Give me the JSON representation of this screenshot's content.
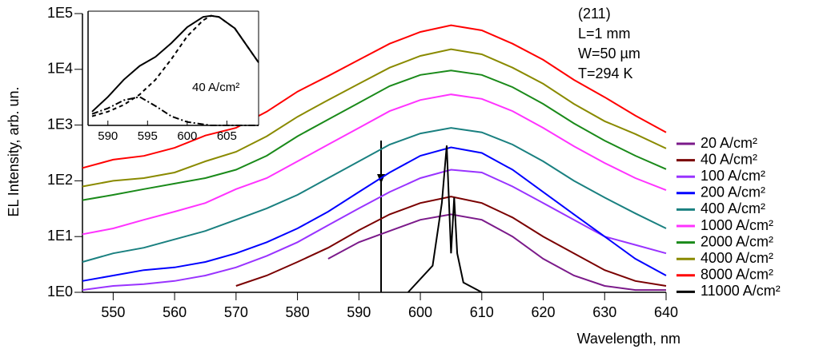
{
  "chart_data": [
    {
      "type": "line",
      "log_y": true,
      "y_label": "EL Intensity, arb. un.",
      "x_label": "Wavelength, nm",
      "annotations": [
        "(211)",
        "L=1 mm",
        "W=50 µm",
        "T=294 K"
      ],
      "x": [
        545,
        550,
        555,
        560,
        565,
        570,
        575,
        580,
        585,
        590,
        595,
        600,
        605,
        610,
        615,
        620,
        625,
        630,
        635,
        640
      ],
      "xlim": [
        545,
        640
      ],
      "xticks": [
        550,
        560,
        570,
        580,
        590,
        600,
        610,
        620,
        630,
        640
      ],
      "ylim": [
        1,
        100000
      ],
      "yticks": [
        {
          "value": 1,
          "label": "1E0"
        },
        {
          "value": 10,
          "label": "1E1"
        },
        {
          "value": 100,
          "label": "1E2"
        },
        {
          "value": 1000,
          "label": "1E3"
        },
        {
          "value": 10000,
          "label": "1E4"
        },
        {
          "value": 100000,
          "label": "1E5"
        }
      ],
      "series": [
        {
          "name": "20 A/cm²",
          "color": "#7b1a8a",
          "values": [
            null,
            null,
            null,
            null,
            null,
            null,
            null,
            null,
            4,
            7.9,
            12.6,
            20,
            25,
            20,
            10,
            4,
            2,
            1.3,
            1.1,
            1.1
          ]
        },
        {
          "name": "40 A/cm²",
          "color": "#7a0000",
          "values": [
            null,
            null,
            null,
            null,
            null,
            1.3,
            2,
            3.5,
            6.3,
            13,
            25,
            40,
            52,
            40,
            22,
            10,
            5,
            2.5,
            1.6,
            1.3
          ]
        },
        {
          "name": "100 A/cm²",
          "color": "#9933ff",
          "values": [
            1.1,
            1.3,
            1.4,
            1.6,
            2,
            2.8,
            4.5,
            7.9,
            16,
            32,
            63,
            112,
            158,
            141,
            79,
            40,
            20,
            10,
            7.1,
            5
          ]
        },
        {
          "name": "200 A/cm²",
          "color": "#0000ff",
          "values": [
            1.6,
            2,
            2.5,
            2.8,
            3.5,
            5,
            7.9,
            14,
            28,
            63,
            141,
            282,
            398,
            316,
            158,
            63,
            25,
            10,
            4,
            2
          ]
        },
        {
          "name": "400 A/cm²",
          "color": "#1a8080",
          "values": [
            3.5,
            5,
            6.3,
            8.9,
            12.6,
            20,
            32,
            56,
            112,
            224,
            447,
            708,
            891,
            741,
            447,
            224,
            100,
            50,
            26,
            14
          ]
        },
        {
          "name": "1000 A/cm²",
          "color": "#ff33ff",
          "values": [
            11,
            14,
            20,
            28,
            40,
            71,
            112,
            224,
            447,
            891,
            1780,
            2820,
            3550,
            2950,
            1780,
            891,
            417,
            209,
            112,
            68
          ]
        },
        {
          "name": "2000 A/cm²",
          "color": "#1a8a1a",
          "values": [
            45,
            56,
            71,
            89,
            112,
            158,
            282,
            631,
            1260,
            2510,
            5010,
            7940,
            9550,
            7940,
            4790,
            2400,
            1070,
            525,
            282,
            162
          ]
        },
        {
          "name": "4000 A/cm²",
          "color": "#8a8a00",
          "values": [
            79,
            100,
            112,
            141,
            224,
            331,
            631,
            1410,
            2820,
            5500,
            10700,
            17400,
            22900,
            18600,
            10700,
            5500,
            2400,
            1170,
            690,
            380
          ]
        },
        {
          "name": "8000 A/cm²",
          "color": "#ff0000",
          "values": [
            170,
            240,
            280,
            390,
            650,
            890,
            1740,
            3980,
            7590,
            14800,
            28800,
            46800,
            61700,
            50100,
            28800,
            14800,
            6460,
            3160,
            1480,
            740
          ]
        },
        {
          "name": "11000 A/cm²",
          "color": "#000000",
          "x": [
            598,
            602,
            603.5,
            604.3,
            605,
            605.5,
            606,
            607,
            610
          ],
          "values": [
            1,
            3,
            40,
            430,
            5,
            50,
            5,
            1.5,
            1
          ]
        }
      ]
    },
    {
      "type": "line",
      "inset_label": "40 A/cm²",
      "x": [
        588,
        590,
        592,
        594,
        596,
        598,
        600,
        602,
        603,
        604,
        606,
        608,
        609
      ],
      "xlim": [
        587.5,
        609
      ],
      "xticks": [
        590,
        595,
        600,
        605
      ],
      "ylim": [
        0,
        1
      ],
      "series": [
        {
          "color": "#000000",
          "dash": "none",
          "values": [
            0.12,
            0.25,
            0.4,
            0.52,
            0.6,
            0.72,
            0.86,
            0.95,
            0.96,
            0.95,
            0.85,
            0.65,
            0.55
          ]
        },
        {
          "color": "#000000",
          "dash": "5,4",
          "values": [
            0.08,
            0.12,
            0.18,
            0.27,
            0.4,
            0.58,
            0.78,
            0.92,
            0.96,
            0.95,
            0.85,
            0.65,
            0.55
          ]
        },
        {
          "color": "#000000",
          "dash": "8,3,2,3",
          "values": [
            0.1,
            0.15,
            0.22,
            0.25,
            0.17,
            0.08,
            0.03,
            0.01,
            0,
            0,
            0,
            0,
            0
          ]
        }
      ]
    }
  ]
}
